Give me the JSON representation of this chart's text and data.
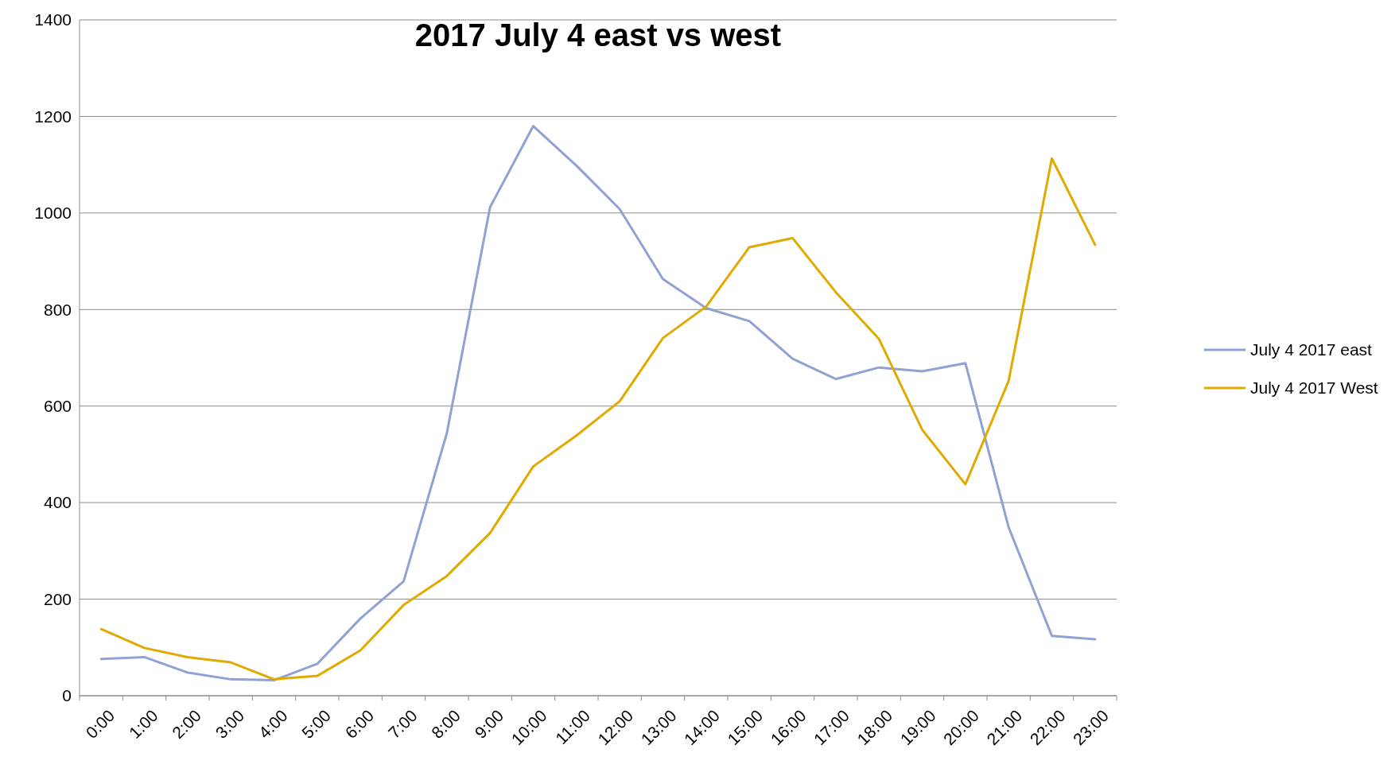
{
  "chart_data": {
    "type": "line",
    "title": "2017 July 4 east vs west",
    "categories": [
      "0:00",
      "1:00",
      "2:00",
      "3:00",
      "4:00",
      "5:00",
      "6:00",
      "7:00",
      "8:00",
      "9:00",
      "10:00",
      "11:00",
      "12:00",
      "13:00",
      "14:00",
      "15:00",
      "16:00",
      "17:00",
      "18:00",
      "19:00",
      "20:00",
      "21:00",
      "22:00",
      "23:00"
    ],
    "series": [
      {
        "name": "July 4 2017 east",
        "color": "#8fa2d4",
        "values": [
          76,
          80,
          48,
          34,
          32,
          66,
          160,
          237,
          544,
          1012,
          1180,
          1098,
          1008,
          863,
          803,
          776,
          698,
          656,
          680,
          672,
          689,
          349,
          124,
          117
        ]
      },
      {
        "name": "July 4 2017 West",
        "color": "#e0aa00",
        "values": [
          138,
          99,
          80,
          69,
          34,
          41,
          94,
          188,
          248,
          337,
          475,
          539,
          610,
          741,
          806,
          929,
          948,
          836,
          739,
          551,
          438,
          652,
          1113,
          934
        ]
      }
    ],
    "ylim": [
      0,
      1400
    ],
    "yticks": [
      0,
      200,
      400,
      600,
      800,
      1000,
      1200,
      1400
    ],
    "grid": "y",
    "legend": "right",
    "marker": "none",
    "line_style": "solid"
  }
}
